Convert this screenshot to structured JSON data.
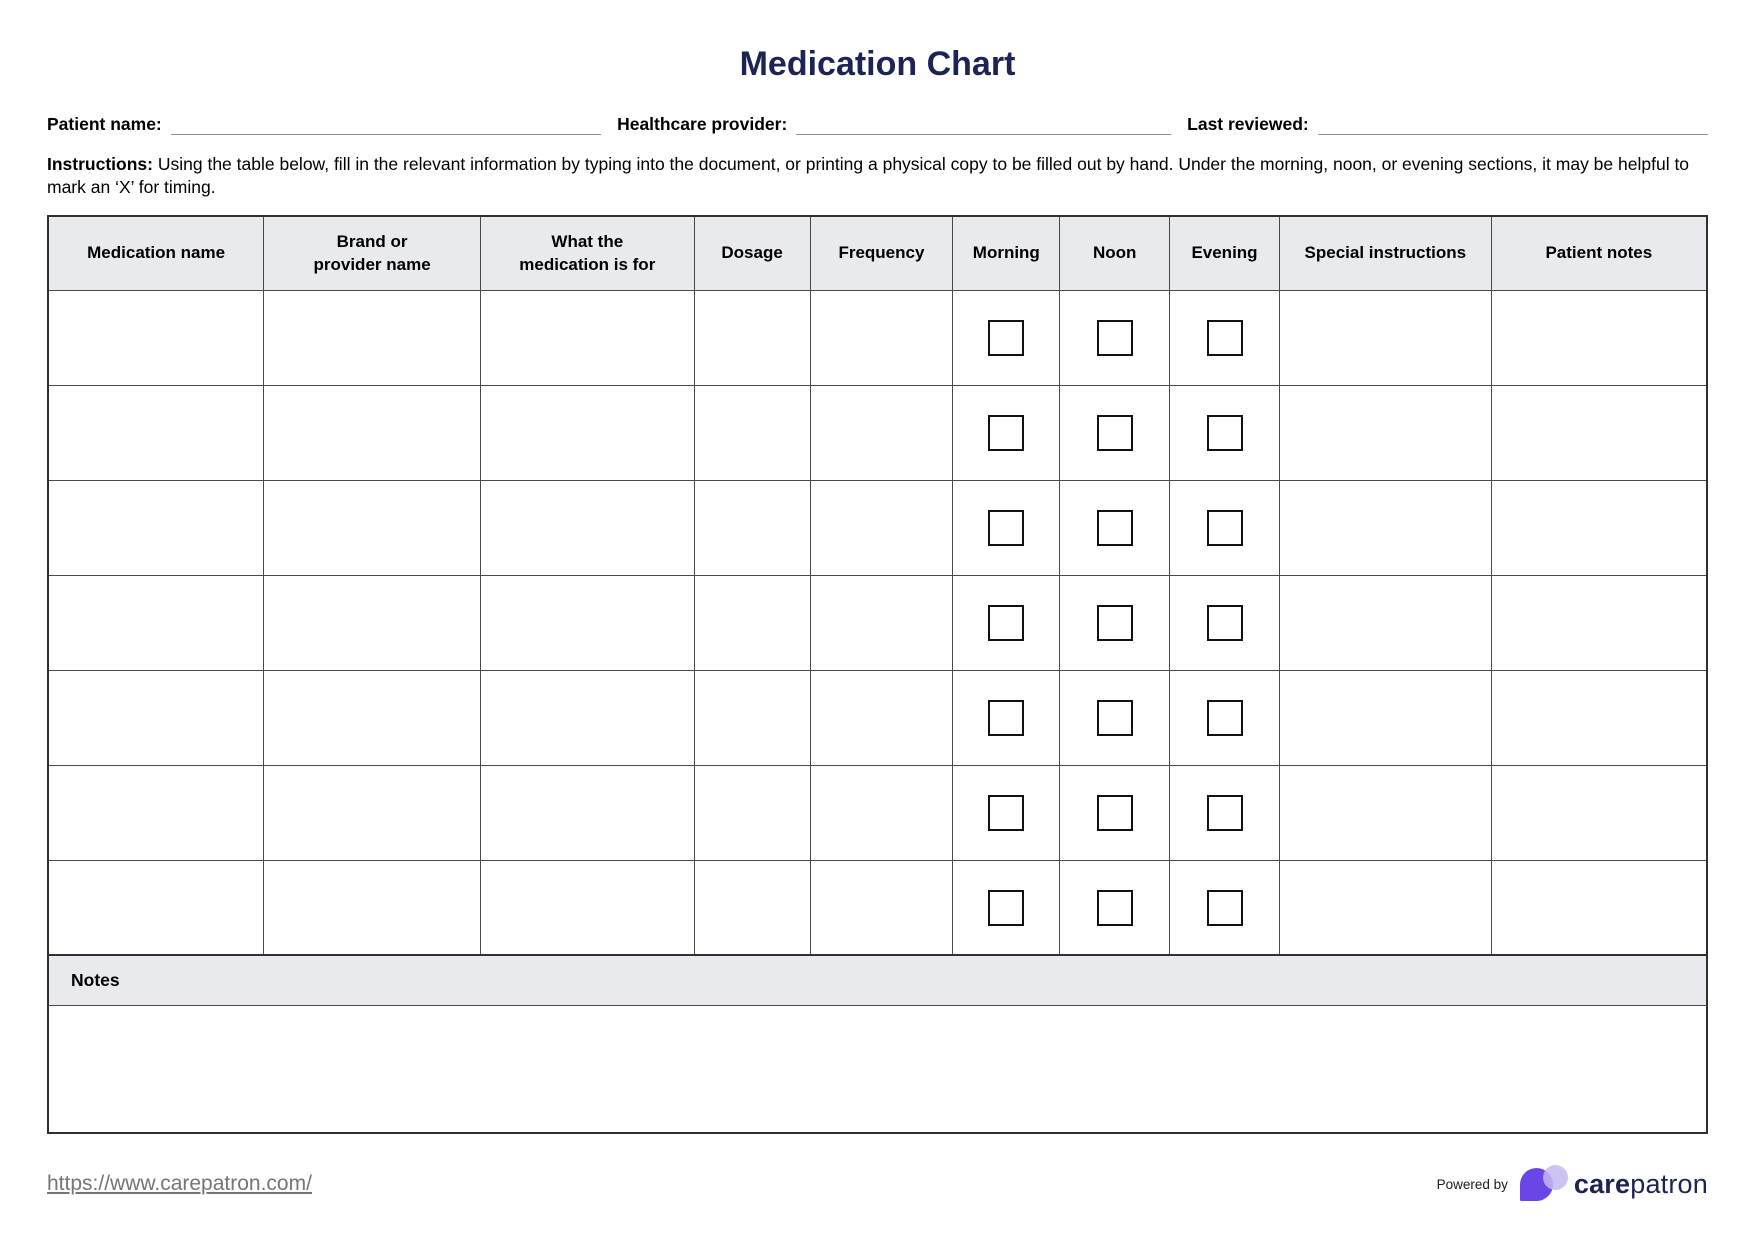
{
  "title": "Medication Chart",
  "fields": {
    "patient_name": {
      "label": "Patient name:",
      "value": ""
    },
    "healthcare_provider": {
      "label": "Healthcare provider:",
      "value": ""
    },
    "last_reviewed": {
      "label": "Last reviewed:",
      "value": ""
    }
  },
  "instructions": {
    "label": "Instructions:",
    "text": "Using the table below, fill in the relevant information by typing into the document, or printing a physical copy to be filled out by hand. Under the morning, noon, or evening sections, it may be helpful to mark an ‘X’ for timing."
  },
  "table": {
    "row_count": 7,
    "cols": [
      {
        "key": "medication-name",
        "l1": "Medication name",
        "l2": "",
        "checkbox": false
      },
      {
        "key": "brand-provider-name",
        "l1": "Brand or",
        "l2": "provider name",
        "checkbox": false
      },
      {
        "key": "medication-purpose",
        "l1": "What the",
        "l2": "medication is for",
        "checkbox": false
      },
      {
        "key": "dosage",
        "l1": "Dosage",
        "l2": "",
        "checkbox": false
      },
      {
        "key": "frequency",
        "l1": "Frequency",
        "l2": "",
        "checkbox": false
      },
      {
        "key": "morning",
        "l1": "Morning",
        "l2": "",
        "checkbox": true
      },
      {
        "key": "noon",
        "l1": "Noon",
        "l2": "",
        "checkbox": true
      },
      {
        "key": "evening",
        "l1": "Evening",
        "l2": "",
        "checkbox": true
      },
      {
        "key": "special-instructions",
        "l1": "Special instructions",
        "l2": "",
        "checkbox": false
      },
      {
        "key": "patient-notes",
        "l1": "Patient notes",
        "l2": "",
        "checkbox": false
      }
    ]
  },
  "notes": {
    "label": "Notes",
    "value": ""
  },
  "footer": {
    "url": "https://www.carepatron.com/",
    "powered_by": "Powered by",
    "brand_bold": "care",
    "brand_regular": "patron"
  },
  "colors": {
    "title_navy": "#1b2452",
    "header_cell_bg": "#e8eaee",
    "table_border": "#4a4a4a",
    "url_gray": "#757575",
    "logo_purple": "#6b46e6",
    "logo_light_purple": "#c4b9f1"
  }
}
